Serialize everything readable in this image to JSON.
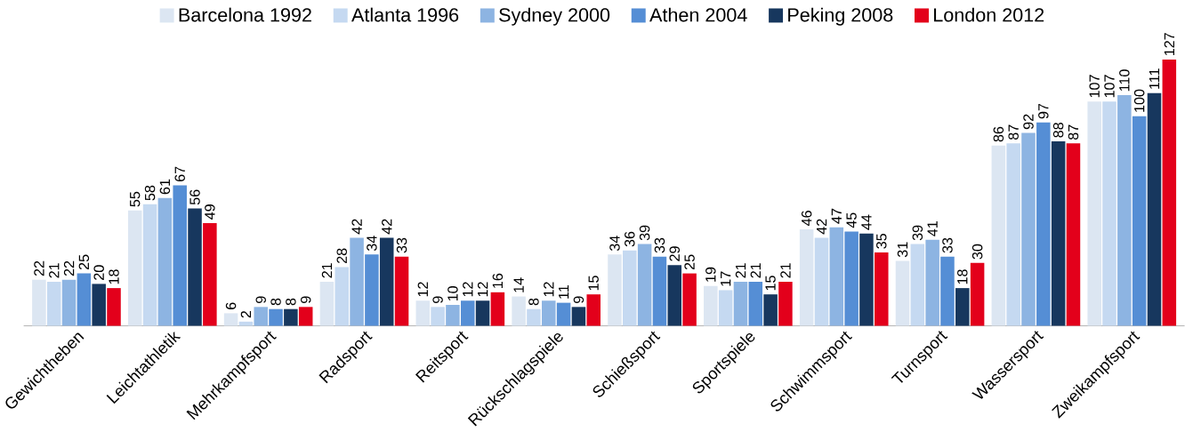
{
  "chart_data": {
    "type": "bar",
    "categories": [
      "Gewichtheben",
      "Leichtathletik",
      "Mehrkampfsport",
      "Radsport",
      "Reitsport",
      "Rückschlagspiele",
      "Schießsport",
      "Sportspiele",
      "Schwimmsport",
      "Turnsport",
      "Wassersport",
      "Zweikampfsport"
    ],
    "series": [
      {
        "name": "Barcelona 1992",
        "color": "#dce6f2",
        "values": [
          22,
          55,
          6,
          21,
          12,
          14,
          34,
          19,
          46,
          31,
          86,
          107
        ]
      },
      {
        "name": "Atlanta 1996",
        "color": "#c5d9f1",
        "values": [
          21,
          58,
          2,
          28,
          9,
          8,
          36,
          17,
          42,
          39,
          87,
          107
        ]
      },
      {
        "name": "Sydney 2000",
        "color": "#8db4e2",
        "values": [
          22,
          61,
          9,
          42,
          10,
          12,
          39,
          21,
          47,
          41,
          92,
          110
        ]
      },
      {
        "name": "Athen 2004",
        "color": "#558ed5",
        "values": [
          25,
          67,
          8,
          34,
          12,
          11,
          33,
          21,
          45,
          33,
          97,
          100
        ]
      },
      {
        "name": "Peking 2008",
        "color": "#17375e",
        "values": [
          20,
          56,
          8,
          42,
          12,
          9,
          29,
          15,
          44,
          18,
          88,
          111
        ]
      },
      {
        "name": "London 2012",
        "color": "#e3001b",
        "values": [
          18,
          49,
          9,
          33,
          16,
          15,
          25,
          21,
          35,
          30,
          87,
          127
        ]
      }
    ],
    "data_labels": true,
    "legend": "top",
    "tick_labels": "x"
  }
}
